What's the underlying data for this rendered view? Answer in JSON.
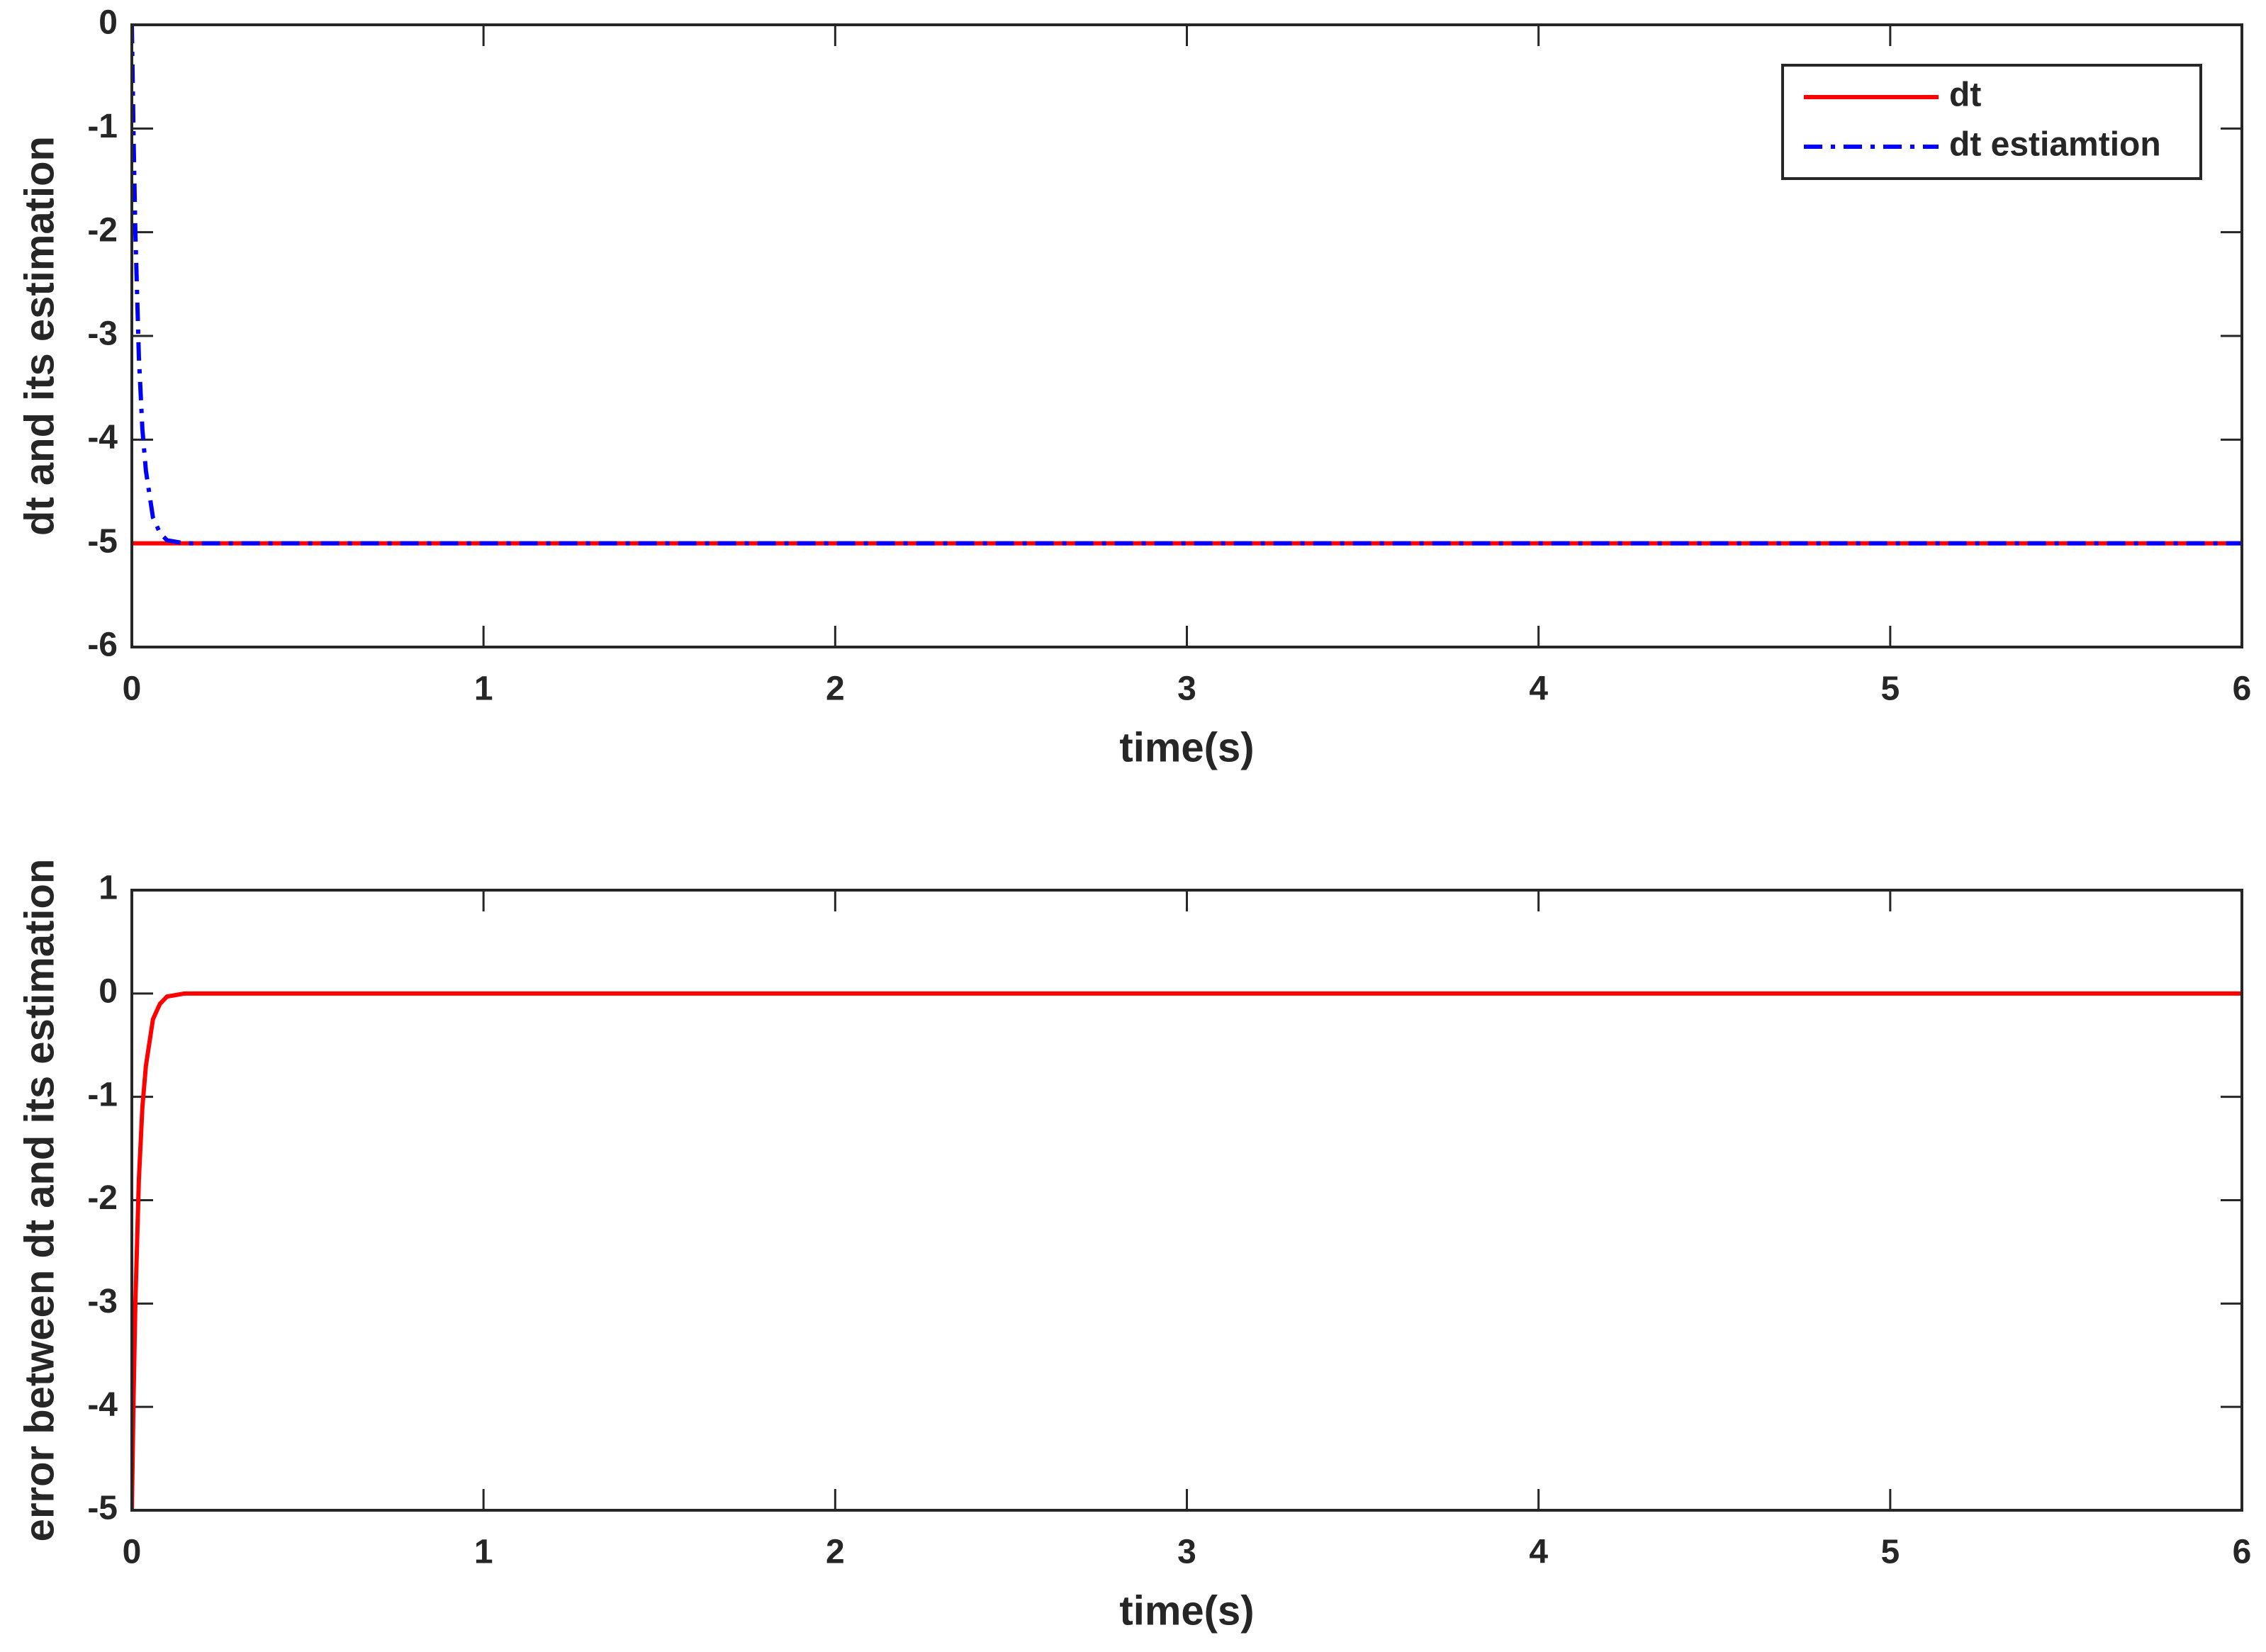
{
  "chart_data": [
    {
      "type": "line",
      "xlabel": "time(s)",
      "ylabel": "dt and its estimation",
      "x": [
        0,
        0.005,
        0.01,
        0.02,
        0.03,
        0.04,
        0.06,
        0.08,
        0.1,
        0.15,
        6
      ],
      "series": [
        {
          "name": "dt",
          "color": "#ff0000",
          "style": "solid",
          "values": [
            -5,
            -5,
            -5,
            -5,
            -5,
            -5,
            -5,
            -5,
            -5,
            -5,
            -5
          ]
        },
        {
          "name": "dt estiamtion",
          "color": "#0000ff",
          "style": "dashdot",
          "values": [
            0,
            -1.1,
            -2.0,
            -3.2,
            -3.9,
            -4.3,
            -4.75,
            -4.9,
            -4.97,
            -5,
            -5
          ]
        }
      ],
      "xlim": [
        0,
        6
      ],
      "xticks": [
        0,
        1,
        2,
        3,
        4,
        5,
        6
      ],
      "ylim": [
        -6,
        0
      ],
      "yticks": [
        -6,
        -5,
        -4,
        -3,
        -2,
        -1,
        0
      ],
      "legend": "upper right"
    },
    {
      "type": "line",
      "xlabel": "time(s)",
      "ylabel": "error between dt and its estimation",
      "x": [
        0,
        0.005,
        0.01,
        0.02,
        0.03,
        0.04,
        0.06,
        0.08,
        0.1,
        0.15,
        6
      ],
      "series": [
        {
          "color": "#ff0000",
          "style": "solid",
          "values": [
            -5,
            -3.9,
            -3.0,
            -1.8,
            -1.1,
            -0.7,
            -0.25,
            -0.1,
            -0.03,
            0,
            0
          ]
        }
      ],
      "xlim": [
        0,
        6
      ],
      "xticks": [
        0,
        1,
        2,
        3,
        4,
        5,
        6
      ],
      "ylim": [
        -5,
        1
      ],
      "yticks": [
        -5,
        -4,
        -3,
        -2,
        -1,
        0,
        1
      ]
    }
  ]
}
